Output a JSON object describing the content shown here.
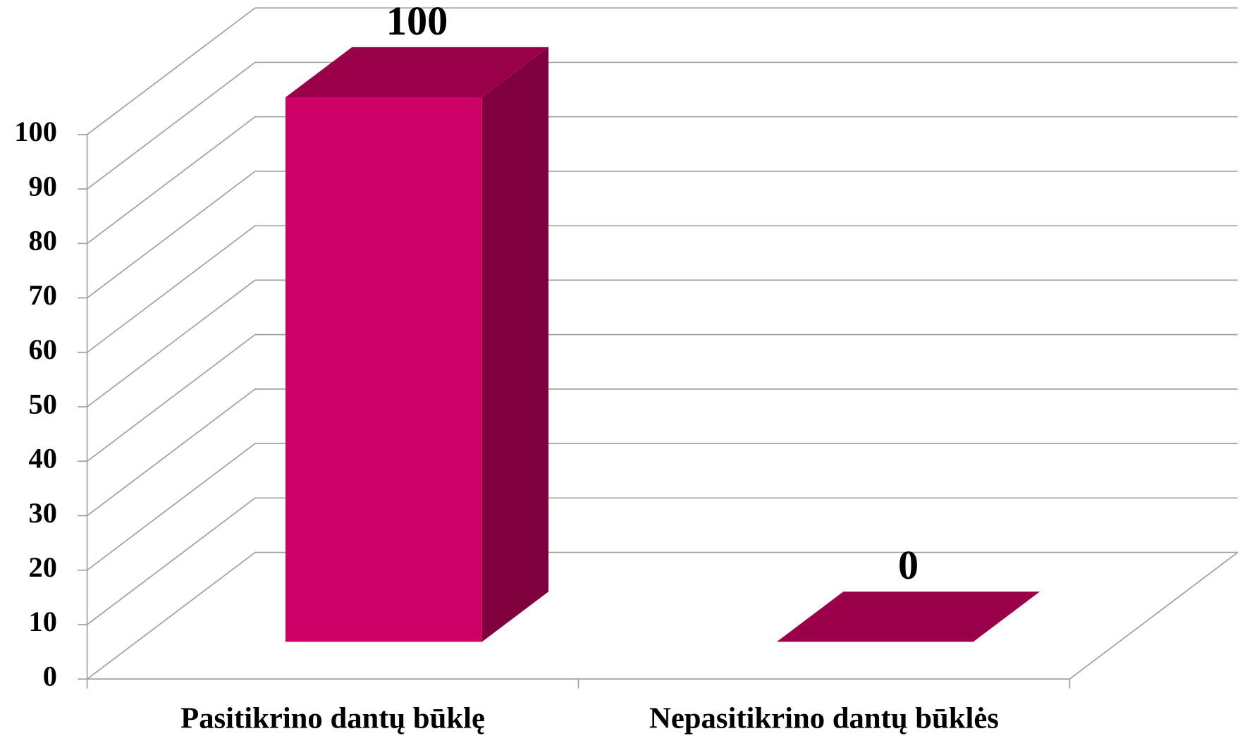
{
  "chart_data": {
    "type": "bar3d",
    "categories": [
      "Pasitikrino dantų būklę",
      "Nepasitikrino dantų būklės"
    ],
    "values": [
      100,
      0
    ],
    "color": "#cc0066",
    "ylim": [
      0,
      100
    ],
    "yticks": [
      0,
      10,
      20,
      30,
      40,
      50,
      60,
      70,
      80,
      90,
      100
    ],
    "grid": true
  }
}
